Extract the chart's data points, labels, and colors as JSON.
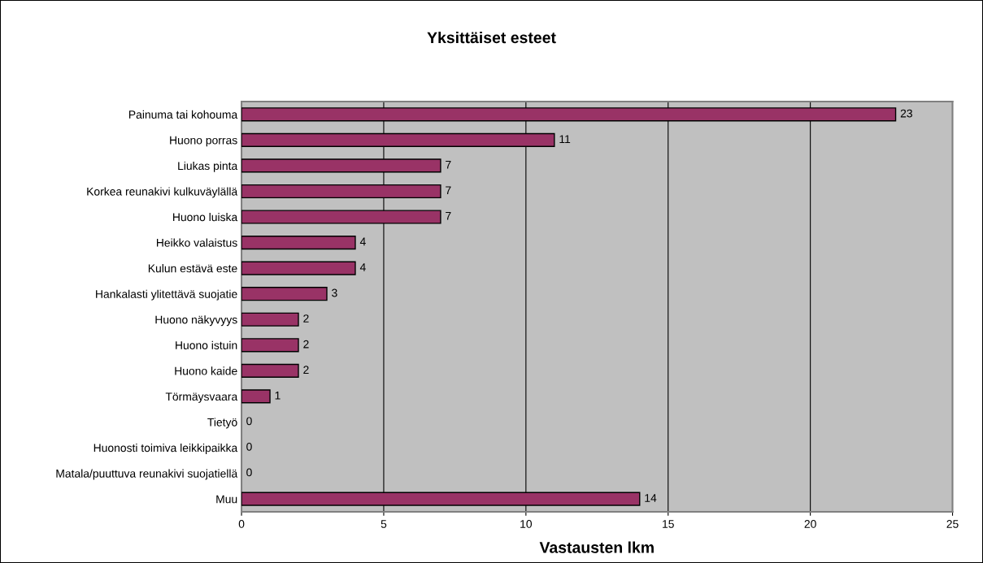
{
  "chart_data": {
    "type": "bar",
    "orientation": "horizontal",
    "title": "Yksittäiset esteet",
    "xlabel": "Vastausten lkm",
    "categories": [
      "Painuma tai kohouma",
      "Huono porras",
      "Liukas pinta",
      "Korkea reunakivi kulkuväylällä",
      "Huono luiska",
      "Heikko valaistus",
      "Kulun estävä este",
      "Hankalasti ylitettävä suojatie",
      "Huono näkyvyys",
      "Huono istuin",
      "Huono kaide",
      "Törmäysvaara",
      "Tietyö",
      "Huonosti toimiva leikkipaikka",
      "Matala/puuttuva reunakivi suojatiellä",
      "Muu"
    ],
    "values": [
      23,
      11,
      7,
      7,
      7,
      4,
      4,
      3,
      2,
      2,
      2,
      1,
      0,
      0,
      0,
      14
    ],
    "color": "#993366",
    "xlim": [
      0,
      25
    ],
    "xticks": [
      0,
      5,
      10,
      15,
      20,
      25
    ],
    "grid": "x",
    "data_labels": true,
    "legend": false
  }
}
